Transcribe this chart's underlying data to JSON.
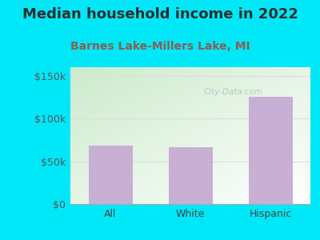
{
  "title": "Median household income in 2022",
  "subtitle": "Barnes Lake-Millers Lake, MI",
  "categories": [
    "All",
    "White",
    "Hispanic"
  ],
  "values": [
    68000,
    66000,
    125000
  ],
  "bar_color": "#c8afd4",
  "title_color": "#2e2e2e",
  "subtitle_color": "#8b5e52",
  "outer_bg": "#00e8f8",
  "plot_bg_top_left": "#cce8cc",
  "plot_bg_bottom_right": "#f8fef8",
  "yticks": [
    0,
    50000,
    100000,
    150000
  ],
  "ytick_labels": [
    "$0",
    "$50k",
    "$100k",
    "$150k"
  ],
  "ylim": [
    0,
    160000
  ],
  "title_fontsize": 13,
  "subtitle_fontsize": 10,
  "tick_fontsize": 9,
  "watermark": "City-Data.com"
}
